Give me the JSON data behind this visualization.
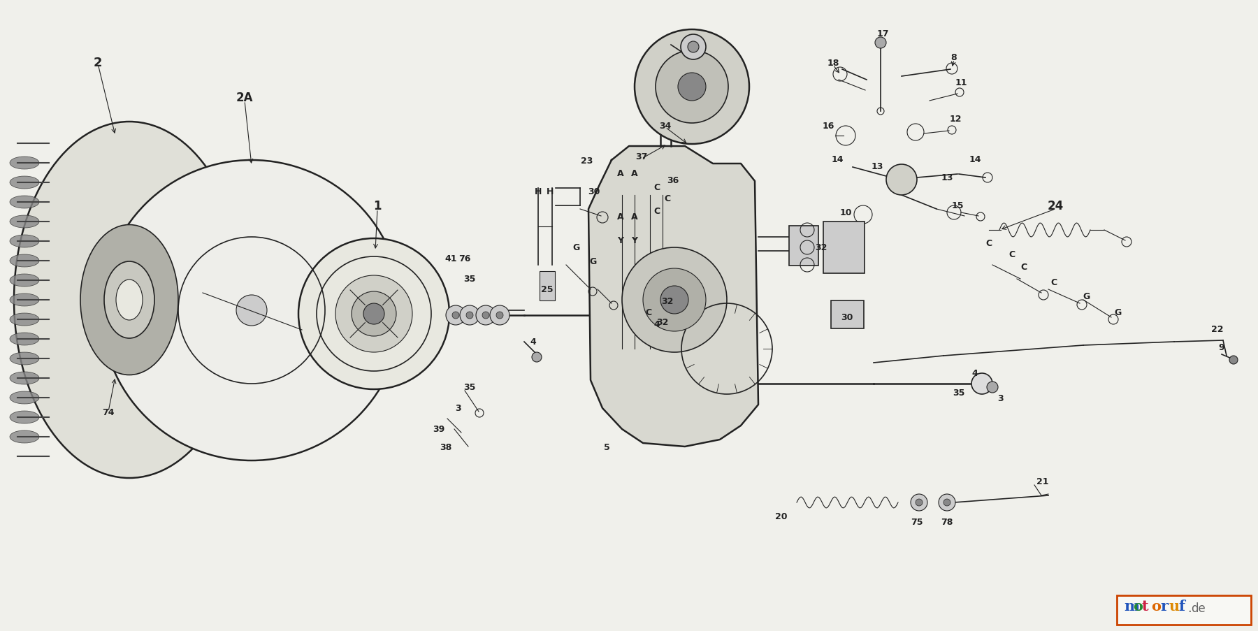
{
  "bg_color": "#f0f0eb",
  "line_color": "#222222",
  "fig_width": 18.0,
  "fig_height": 9.04,
  "motoruf_letters": [
    "m",
    "o",
    "t",
    "o",
    "r",
    "u",
    "f"
  ],
  "motoruf_colors": [
    "#2255bb",
    "#228833",
    "#cc2244",
    "#dd6600",
    "#2255bb",
    "#dd8800",
    "#2255bb"
  ],
  "motoruf_de_color": "#666666"
}
